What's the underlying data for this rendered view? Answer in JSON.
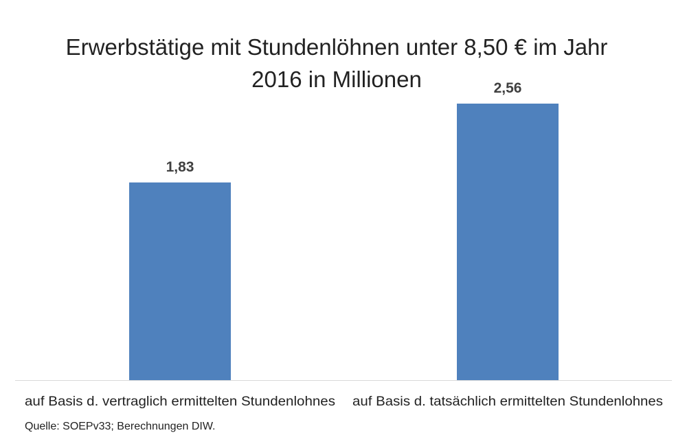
{
  "chart_data": {
    "type": "bar",
    "title_lines": [
      "Erwerbstätige mit Stundenlöhnen unter 8,50 € im Jahr",
      "2016 in Millionen"
    ],
    "categories": [
      "auf Basis d. vertraglich ermittelten Stundenlohnes",
      "auf Basis d. tatsächlich ermittelten Stundenlohnes"
    ],
    "values": [
      1.83,
      2.56
    ],
    "value_labels": [
      "1,83",
      "2,56"
    ],
    "ylim": [
      0,
      2.56
    ],
    "xlabel": "",
    "ylabel": "",
    "grid": false,
    "legend": "none",
    "bar_color": "#4f81bd",
    "axis_color": "#d9d9d9"
  },
  "source": "Quelle: SOEPv33; Berechnungen DIW."
}
